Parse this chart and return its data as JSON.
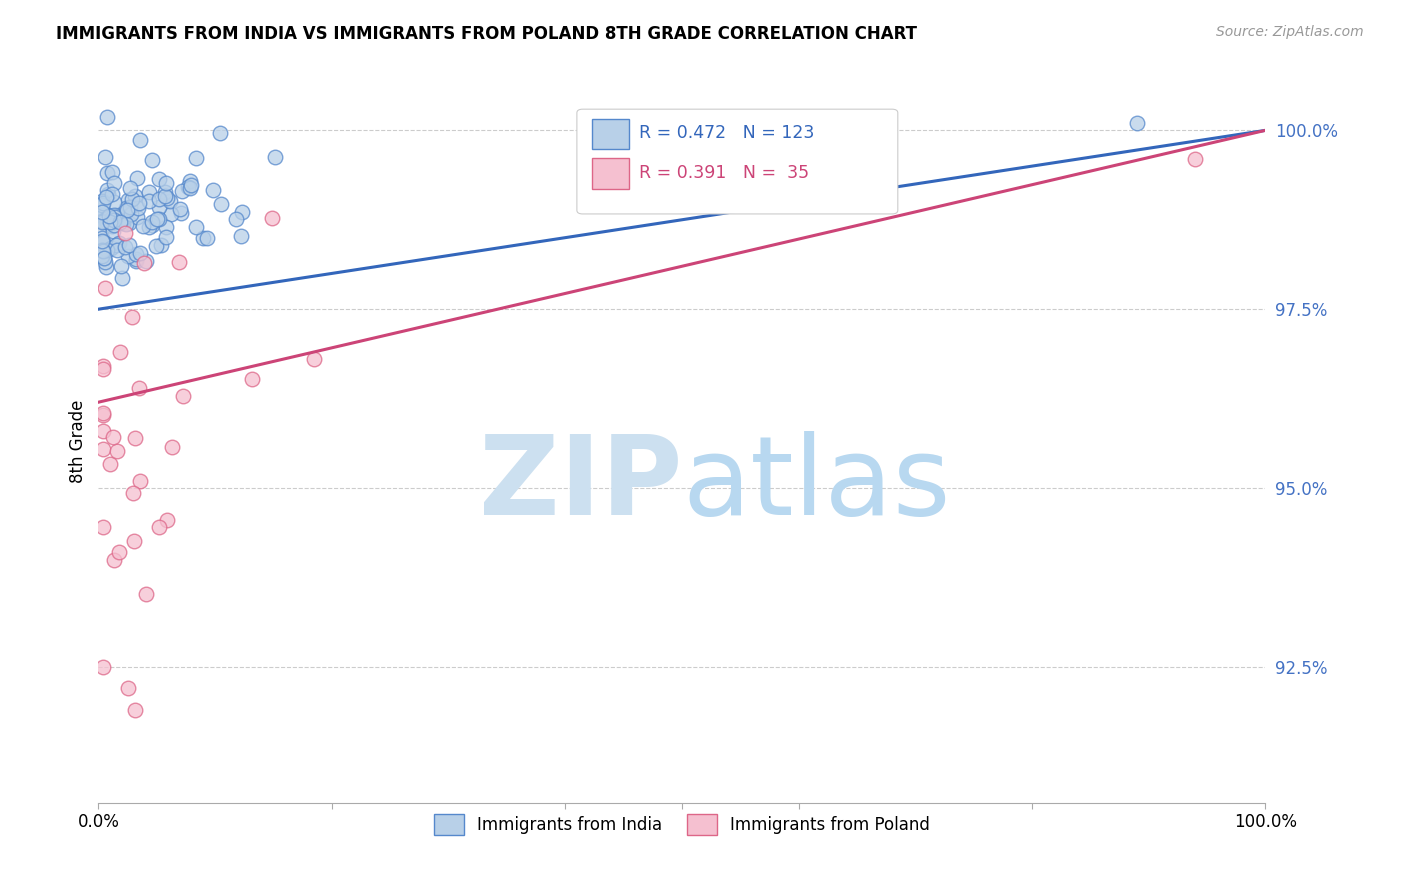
{
  "title": "IMMIGRANTS FROM INDIA VS IMMIGRANTS FROM POLAND 8TH GRADE CORRELATION CHART",
  "source": "Source: ZipAtlas.com",
  "ylabel": "8th Grade",
  "india_R": 0.472,
  "india_N": 123,
  "poland_R": 0.391,
  "poland_N": 35,
  "india_color": "#b8d0e8",
  "india_edge_color": "#5588cc",
  "india_line_color": "#3366bb",
  "poland_color": "#f5c0d0",
  "poland_edge_color": "#dd6688",
  "poland_line_color": "#cc4477",
  "watermark_zip_color": "#cce0f0",
  "watermark_atlas_color": "#b8d8f0",
  "ytick_color": "#4472c4",
  "xmin": 0.0,
  "xmax": 1.0,
  "ymin": 0.906,
  "ymax": 1.007,
  "ytick_vals": [
    0.925,
    0.95,
    0.975,
    1.0
  ],
  "ytick_labels": [
    "92.5%",
    "95.0%",
    "97.5%",
    "100.0%"
  ]
}
